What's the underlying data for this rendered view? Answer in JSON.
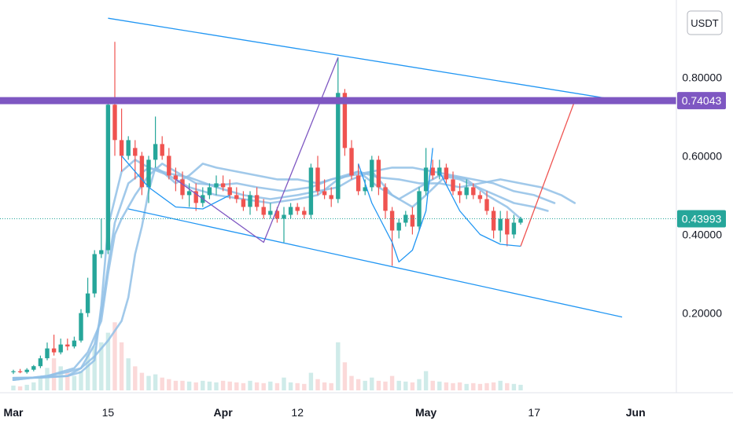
{
  "chart_data": {
    "type": "candlestick",
    "currency": "USDT",
    "y_scale": "linear",
    "ylim": [
      0.0,
      0.93
    ],
    "y_ticks": [
      {
        "value": 0.8,
        "label": "0.80000"
      },
      {
        "value": 0.6,
        "label": "0.60000"
      },
      {
        "value": 0.4,
        "label": "0.40000"
      },
      {
        "value": 0.2,
        "label": "0.20000"
      }
    ],
    "x_ticks": [
      {
        "day": 0,
        "label": "Mar",
        "bold": true
      },
      {
        "day": 14,
        "label": "15",
        "bold": false
      },
      {
        "day": 31,
        "label": "Apr",
        "bold": true
      },
      {
        "day": 42,
        "label": "12",
        "bold": false
      },
      {
        "day": 61,
        "label": "May",
        "bold": true
      },
      {
        "day": 77,
        "label": "17",
        "bold": false
      },
      {
        "day": 92,
        "label": "Jun",
        "bold": true
      }
    ],
    "price_lines": [
      {
        "value": 0.74043,
        "label": "0.74043",
        "color": "#7e57c2",
        "style": "thick"
      },
      {
        "value": 0.43993,
        "label": "0.43993",
        "color": "#26a69a",
        "style": "dotted"
      }
    ],
    "colors": {
      "up": "#26a69a",
      "down": "#ef5350",
      "ma": "#90bfe6",
      "channel": "#2196f3"
    },
    "candles": [
      {
        "o": 0.05,
        "h": 0.056,
        "l": 0.045,
        "c": 0.052
      },
      {
        "o": 0.052,
        "h": 0.058,
        "l": 0.047,
        "c": 0.05
      },
      {
        "o": 0.05,
        "h": 0.06,
        "l": 0.046,
        "c": 0.056
      },
      {
        "o": 0.056,
        "h": 0.068,
        "l": 0.052,
        "c": 0.065
      },
      {
        "o": 0.065,
        "h": 0.092,
        "l": 0.06,
        "c": 0.085
      },
      {
        "o": 0.085,
        "h": 0.125,
        "l": 0.08,
        "c": 0.11
      },
      {
        "o": 0.11,
        "h": 0.145,
        "l": 0.092,
        "c": 0.1
      },
      {
        "o": 0.1,
        "h": 0.135,
        "l": 0.095,
        "c": 0.12
      },
      {
        "o": 0.12,
        "h": 0.135,
        "l": 0.105,
        "c": 0.115
      },
      {
        "o": 0.115,
        "h": 0.14,
        "l": 0.11,
        "c": 0.13
      },
      {
        "o": 0.13,
        "h": 0.21,
        "l": 0.125,
        "c": 0.2
      },
      {
        "o": 0.2,
        "h": 0.29,
        "l": 0.19,
        "c": 0.25
      },
      {
        "o": 0.25,
        "h": 0.36,
        "l": 0.24,
        "c": 0.35
      },
      {
        "o": 0.35,
        "h": 0.44,
        "l": 0.34,
        "c": 0.36
      },
      {
        "o": 0.36,
        "h": 0.74,
        "l": 0.35,
        "c": 0.73
      },
      {
        "o": 0.73,
        "h": 0.89,
        "l": 0.6,
        "c": 0.64
      },
      {
        "o": 0.64,
        "h": 0.72,
        "l": 0.56,
        "c": 0.6
      },
      {
        "o": 0.6,
        "h": 0.65,
        "l": 0.59,
        "c": 0.64
      },
      {
        "o": 0.62,
        "h": 0.64,
        "l": 0.54,
        "c": 0.6
      },
      {
        "o": 0.6,
        "h": 0.61,
        "l": 0.5,
        "c": 0.52
      },
      {
        "o": 0.52,
        "h": 0.6,
        "l": 0.48,
        "c": 0.59
      },
      {
        "o": 0.59,
        "h": 0.7,
        "l": 0.57,
        "c": 0.63
      },
      {
        "o": 0.63,
        "h": 0.65,
        "l": 0.59,
        "c": 0.6
      },
      {
        "o": 0.6,
        "h": 0.62,
        "l": 0.54,
        "c": 0.55
      },
      {
        "o": 0.55,
        "h": 0.57,
        "l": 0.51,
        "c": 0.54
      },
      {
        "o": 0.54,
        "h": 0.56,
        "l": 0.49,
        "c": 0.5
      },
      {
        "o": 0.5,
        "h": 0.53,
        "l": 0.47,
        "c": 0.51
      },
      {
        "o": 0.51,
        "h": 0.53,
        "l": 0.46,
        "c": 0.48
      },
      {
        "o": 0.48,
        "h": 0.52,
        "l": 0.47,
        "c": 0.5
      },
      {
        "o": 0.5,
        "h": 0.53,
        "l": 0.49,
        "c": 0.52
      },
      {
        "o": 0.52,
        "h": 0.55,
        "l": 0.5,
        "c": 0.53
      },
      {
        "o": 0.53,
        "h": 0.55,
        "l": 0.51,
        "c": 0.52
      },
      {
        "o": 0.52,
        "h": 0.54,
        "l": 0.49,
        "c": 0.5
      },
      {
        "o": 0.5,
        "h": 0.52,
        "l": 0.48,
        "c": 0.49
      },
      {
        "o": 0.49,
        "h": 0.51,
        "l": 0.46,
        "c": 0.47
      },
      {
        "o": 0.47,
        "h": 0.51,
        "l": 0.45,
        "c": 0.5
      },
      {
        "o": 0.5,
        "h": 0.52,
        "l": 0.46,
        "c": 0.47
      },
      {
        "o": 0.47,
        "h": 0.49,
        "l": 0.44,
        "c": 0.45
      },
      {
        "o": 0.45,
        "h": 0.48,
        "l": 0.44,
        "c": 0.46
      },
      {
        "o": 0.46,
        "h": 0.47,
        "l": 0.43,
        "c": 0.44
      },
      {
        "o": 0.44,
        "h": 0.47,
        "l": 0.38,
        "c": 0.45
      },
      {
        "o": 0.45,
        "h": 0.48,
        "l": 0.44,
        "c": 0.47
      },
      {
        "o": 0.47,
        "h": 0.48,
        "l": 0.45,
        "c": 0.46
      },
      {
        "o": 0.46,
        "h": 0.47,
        "l": 0.44,
        "c": 0.45
      },
      {
        "o": 0.45,
        "h": 0.58,
        "l": 0.44,
        "c": 0.57
      },
      {
        "o": 0.57,
        "h": 0.6,
        "l": 0.5,
        "c": 0.51
      },
      {
        "o": 0.51,
        "h": 0.54,
        "l": 0.49,
        "c": 0.5
      },
      {
        "o": 0.5,
        "h": 0.52,
        "l": 0.47,
        "c": 0.49
      },
      {
        "o": 0.49,
        "h": 0.85,
        "l": 0.48,
        "c": 0.76
      },
      {
        "o": 0.76,
        "h": 0.77,
        "l": 0.6,
        "c": 0.62
      },
      {
        "o": 0.62,
        "h": 0.64,
        "l": 0.54,
        "c": 0.55
      },
      {
        "o": 0.55,
        "h": 0.58,
        "l": 0.5,
        "c": 0.51
      },
      {
        "o": 0.51,
        "h": 0.54,
        "l": 0.5,
        "c": 0.52
      },
      {
        "o": 0.52,
        "h": 0.6,
        "l": 0.51,
        "c": 0.59
      },
      {
        "o": 0.59,
        "h": 0.6,
        "l": 0.5,
        "c": 0.52
      },
      {
        "o": 0.52,
        "h": 0.53,
        "l": 0.44,
        "c": 0.46
      },
      {
        "o": 0.46,
        "h": 0.47,
        "l": 0.32,
        "c": 0.41
      },
      {
        "o": 0.41,
        "h": 0.44,
        "l": 0.39,
        "c": 0.43
      },
      {
        "o": 0.43,
        "h": 0.46,
        "l": 0.42,
        "c": 0.45
      },
      {
        "o": 0.45,
        "h": 0.47,
        "l": 0.4,
        "c": 0.42
      },
      {
        "o": 0.42,
        "h": 0.52,
        "l": 0.41,
        "c": 0.51
      },
      {
        "o": 0.51,
        "h": 0.62,
        "l": 0.5,
        "c": 0.57
      },
      {
        "o": 0.57,
        "h": 0.59,
        "l": 0.54,
        "c": 0.55
      },
      {
        "o": 0.55,
        "h": 0.59,
        "l": 0.54,
        "c": 0.57
      },
      {
        "o": 0.57,
        "h": 0.58,
        "l": 0.53,
        "c": 0.54
      },
      {
        "o": 0.54,
        "h": 0.56,
        "l": 0.5,
        "c": 0.51
      },
      {
        "o": 0.51,
        "h": 0.53,
        "l": 0.48,
        "c": 0.5
      },
      {
        "o": 0.5,
        "h": 0.54,
        "l": 0.49,
        "c": 0.52
      },
      {
        "o": 0.52,
        "h": 0.53,
        "l": 0.49,
        "c": 0.5
      },
      {
        "o": 0.5,
        "h": 0.51,
        "l": 0.48,
        "c": 0.49
      },
      {
        "o": 0.49,
        "h": 0.51,
        "l": 0.45,
        "c": 0.46
      },
      {
        "o": 0.46,
        "h": 0.47,
        "l": 0.39,
        "c": 0.41
      },
      {
        "o": 0.41,
        "h": 0.46,
        "l": 0.38,
        "c": 0.44
      },
      {
        "o": 0.44,
        "h": 0.46,
        "l": 0.37,
        "c": 0.4
      },
      {
        "o": 0.4,
        "h": 0.45,
        "l": 0.39,
        "c": 0.43
      },
      {
        "o": 0.43,
        "h": 0.445,
        "l": 0.425,
        "c": 0.44
      }
    ],
    "volumes": [
      6,
      5,
      7,
      10,
      18,
      28,
      40,
      30,
      22,
      18,
      24,
      45,
      55,
      60,
      72,
      85,
      60,
      40,
      30,
      22,
      18,
      20,
      16,
      14,
      12,
      12,
      11,
      10,
      12,
      11,
      10,
      12,
      11,
      10,
      9,
      12,
      10,
      9,
      11,
      9,
      16,
      10,
      9,
      8,
      22,
      14,
      10,
      9,
      60,
      35,
      18,
      14,
      12,
      16,
      12,
      11,
      18,
      12,
      11,
      10,
      14,
      24,
      12,
      11,
      10,
      9,
      10,
      8,
      9,
      8,
      9,
      10,
      12,
      9,
      8,
      7
    ],
    "moving_averages": [
      {
        "points": [
          [
            0,
            0.035
          ],
          [
            4,
            0.036
          ],
          [
            8,
            0.04
          ],
          [
            10,
            0.05
          ],
          [
            12,
            0.08
          ],
          [
            13,
            0.22
          ],
          [
            14,
            0.42
          ],
          [
            16,
            0.56
          ],
          [
            18,
            0.59
          ],
          [
            20,
            0.57
          ],
          [
            23,
            0.555
          ],
          [
            26,
            0.545
          ],
          [
            30,
            0.52
          ],
          [
            34,
            0.5
          ],
          [
            38,
            0.49
          ],
          [
            42,
            0.5
          ],
          [
            45,
            0.51
          ],
          [
            48,
            0.52
          ],
          [
            50,
            0.54
          ],
          [
            53,
            0.56
          ],
          [
            56,
            0.5
          ],
          [
            59,
            0.47
          ],
          [
            61,
            0.5
          ],
          [
            64,
            0.55
          ],
          [
            67,
            0.54
          ],
          [
            70,
            0.5
          ],
          [
            73,
            0.47
          ],
          [
            75,
            0.44
          ]
        ]
      },
      {
        "points": [
          [
            0,
            0.035
          ],
          [
            4,
            0.036
          ],
          [
            8,
            0.04
          ],
          [
            10,
            0.06
          ],
          [
            12,
            0.12
          ],
          [
            13,
            0.2
          ],
          [
            14,
            0.32
          ],
          [
            15,
            0.43
          ],
          [
            17,
            0.53
          ],
          [
            20,
            0.57
          ],
          [
            23,
            0.55
          ],
          [
            26,
            0.52
          ],
          [
            30,
            0.5
          ],
          [
            34,
            0.49
          ],
          [
            38,
            0.48
          ],
          [
            42,
            0.49
          ],
          [
            45,
            0.5
          ],
          [
            48,
            0.54
          ],
          [
            51,
            0.56
          ],
          [
            54,
            0.52
          ],
          [
            57,
            0.49
          ],
          [
            60,
            0.52
          ],
          [
            63,
            0.55
          ],
          [
            66,
            0.54
          ],
          [
            70,
            0.51
          ],
          [
            74,
            0.48
          ],
          [
            77,
            0.47
          ],
          [
            79,
            0.46
          ]
        ]
      },
      {
        "points": [
          [
            0,
            0.03
          ],
          [
            5,
            0.04
          ],
          [
            9,
            0.06
          ],
          [
            11,
            0.1
          ],
          [
            13,
            0.18
          ],
          [
            14,
            0.3
          ],
          [
            15,
            0.4
          ],
          [
            16,
            0.44
          ],
          [
            18,
            0.5
          ],
          [
            20,
            0.55
          ],
          [
            22,
            0.58
          ],
          [
            24,
            0.56
          ],
          [
            27,
            0.53
          ],
          [
            30,
            0.525
          ],
          [
            33,
            0.53
          ],
          [
            36,
            0.52
          ],
          [
            40,
            0.51
          ],
          [
            44,
            0.52
          ],
          [
            47,
            0.54
          ],
          [
            50,
            0.55
          ],
          [
            53,
            0.56
          ],
          [
            56,
            0.57
          ],
          [
            59,
            0.57
          ],
          [
            62,
            0.56
          ],
          [
            65,
            0.55
          ],
          [
            68,
            0.54
          ],
          [
            71,
            0.53
          ],
          [
            74,
            0.51
          ],
          [
            77,
            0.5
          ],
          [
            80,
            0.48
          ]
        ]
      },
      {
        "points": [
          [
            0,
            0.03
          ],
          [
            5,
            0.04
          ],
          [
            8,
            0.05
          ],
          [
            10,
            0.06
          ],
          [
            12,
            0.09
          ],
          [
            14,
            0.13
          ],
          [
            16,
            0.18
          ],
          [
            17,
            0.24
          ],
          [
            18,
            0.35
          ],
          [
            19,
            0.42
          ],
          [
            20,
            0.51
          ],
          [
            21,
            0.57
          ],
          [
            22,
            0.56
          ],
          [
            24,
            0.53
          ],
          [
            26,
            0.55
          ],
          [
            28,
            0.58
          ],
          [
            30,
            0.57
          ],
          [
            33,
            0.56
          ],
          [
            36,
            0.55
          ],
          [
            39,
            0.54
          ],
          [
            42,
            0.54
          ],
          [
            45,
            0.53
          ],
          [
            48,
            0.545
          ],
          [
            51,
            0.56
          ],
          [
            54,
            0.545
          ],
          [
            57,
            0.54
          ],
          [
            60,
            0.53
          ],
          [
            63,
            0.53
          ],
          [
            66,
            0.52
          ],
          [
            69,
            0.53
          ],
          [
            72,
            0.54
          ],
          [
            75,
            0.53
          ],
          [
            78,
            0.52
          ],
          [
            81,
            0.5
          ],
          [
            83,
            0.48
          ]
        ]
      }
    ],
    "annotations": [
      {
        "kind": "channel_top",
        "color": "#2196f3",
        "points": [
          [
            14,
            0.95
          ],
          [
            90,
            0.74
          ]
        ]
      },
      {
        "kind": "channel_bottom",
        "color": "#2196f3",
        "points": [
          [
            17,
            0.465
          ],
          [
            90,
            0.19
          ]
        ]
      },
      {
        "kind": "zigzag",
        "color": "#7e57c2",
        "points": [
          [
            24,
            0.54
          ],
          [
            37,
            0.38
          ],
          [
            48,
            0.85
          ]
        ]
      },
      {
        "kind": "projection",
        "color": "#ef5350",
        "points": [
          [
            75,
            0.37
          ],
          [
            83,
            0.74
          ]
        ]
      },
      {
        "kind": "arc",
        "color": "#2196f3",
        "points": [
          [
            16,
            0.6
          ],
          [
            20,
            0.52
          ],
          [
            24,
            0.47
          ],
          [
            28,
            0.465
          ],
          [
            32,
            0.5
          ]
        ]
      },
      {
        "kind": "arc",
        "color": "#2196f3",
        "points": [
          [
            51,
            0.58
          ],
          [
            53,
            0.48
          ],
          [
            56,
            0.38
          ],
          [
            57,
            0.33
          ],
          [
            59,
            0.36
          ],
          [
            61,
            0.46
          ],
          [
            62,
            0.62
          ]
        ]
      },
      {
        "kind": "arc",
        "color": "#2196f3",
        "points": [
          [
            63,
            0.56
          ],
          [
            66,
            0.46
          ],
          [
            69,
            0.4
          ],
          [
            72,
            0.375
          ],
          [
            75,
            0.37
          ]
        ]
      }
    ]
  }
}
